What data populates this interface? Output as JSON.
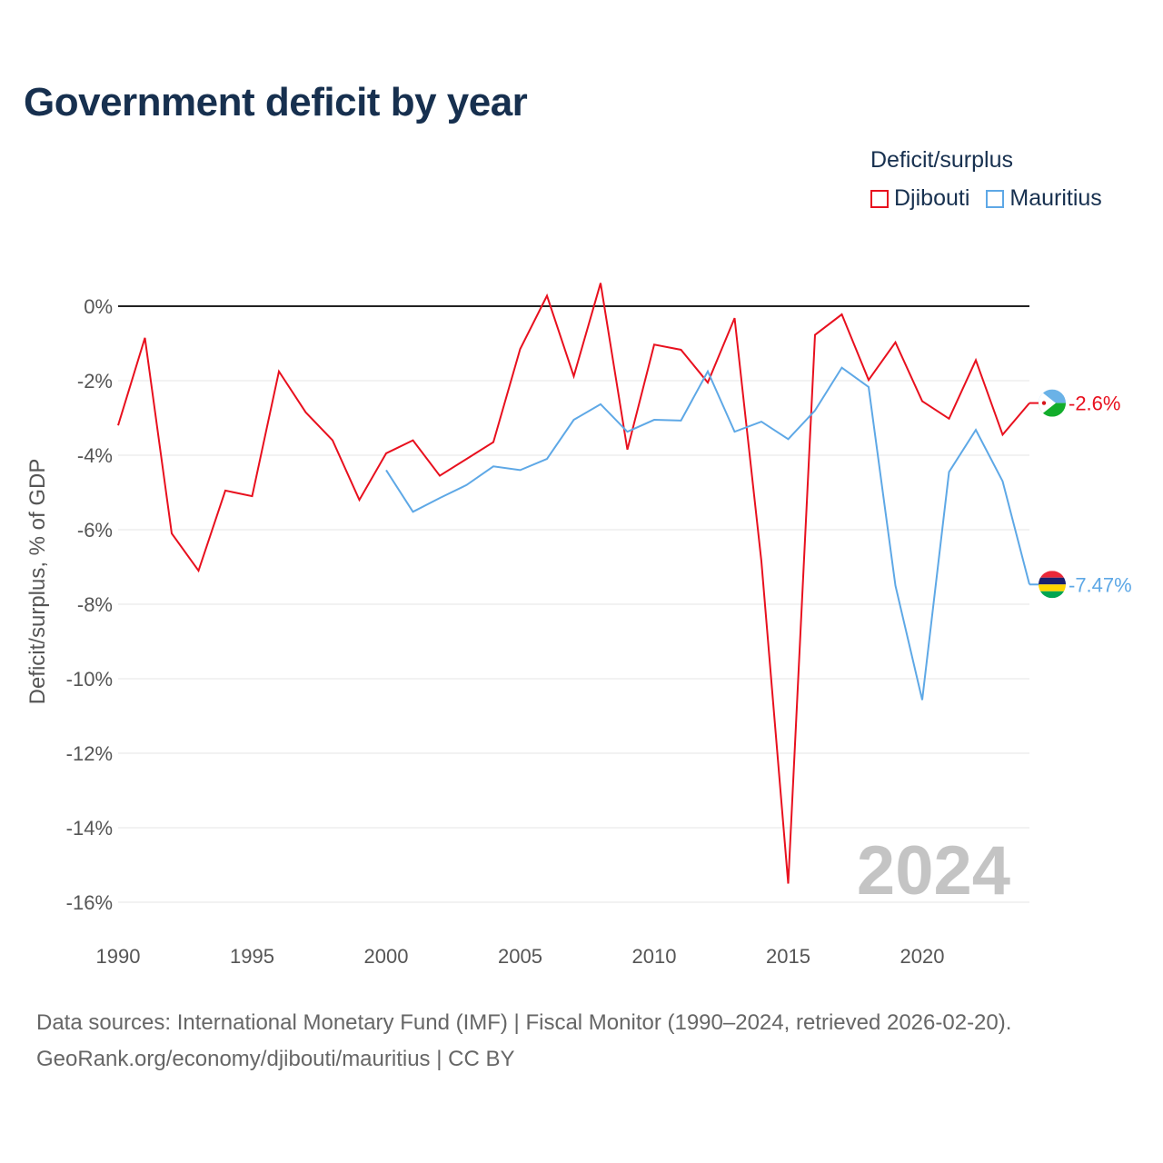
{
  "title": "Government deficit by year",
  "legend": {
    "title": "Deficit/surplus",
    "items": [
      {
        "label": "Djibouti",
        "color": "#e8101e"
      },
      {
        "label": "Mauritius",
        "color": "#5ea8e6"
      }
    ]
  },
  "footer": {
    "line1": "Data sources: International Monetary Fund (IMF) | Fiscal Monitor (1990–2024, retrieved 2026-02-20).",
    "line2": "GeoRank.org/economy/djibouti/mauritius | CC BY"
  },
  "chart_data": {
    "type": "line",
    "title": "Government deficit by year",
    "ylabel": "Deficit/surplus, % of GDP",
    "xlabel": "",
    "xlim": [
      1990,
      2024
    ],
    "ylim": [
      -16,
      0
    ],
    "yticks": [
      0,
      -2,
      -4,
      -6,
      -8,
      -10,
      -12,
      -14,
      -16
    ],
    "ytick_labels": [
      "0%",
      "-2%",
      "-4%",
      "-6%",
      "-8%",
      "-10%",
      "-12%",
      "-14%",
      "-16%"
    ],
    "xticks": [
      1990,
      1995,
      2000,
      2005,
      2010,
      2015,
      2020
    ],
    "xtick_labels": [
      "1990",
      "1995",
      "2000",
      "2005",
      "2010",
      "2015",
      "2020"
    ],
    "year_watermark": "2024",
    "series": [
      {
        "name": "Djibouti",
        "color": "#e8101e",
        "end_label": "-2.6%",
        "x": [
          1990,
          1991,
          1992,
          1993,
          1994,
          1995,
          1996,
          1997,
          1998,
          1999,
          2000,
          2001,
          2002,
          2003,
          2004,
          2005,
          2006,
          2007,
          2008,
          2009,
          2010,
          2011,
          2012,
          2013,
          2014,
          2015,
          2016,
          2017,
          2018,
          2019,
          2020,
          2021,
          2022,
          2023,
          2024
        ],
        "values": [
          -3.2,
          -0.85,
          -6.1,
          -7.1,
          -4.95,
          -5.1,
          -1.75,
          -2.85,
          -3.6,
          -5.2,
          -3.95,
          -3.6,
          -4.55,
          -4.1,
          -3.65,
          -1.15,
          0.28,
          -1.88,
          0.62,
          -3.85,
          -1.03,
          -1.17,
          -2.05,
          -0.32,
          -6.85,
          -15.5,
          -0.77,
          -0.22,
          -1.98,
          -0.97,
          -2.55,
          -3.02,
          -1.45,
          -3.45,
          -2.6
        ]
      },
      {
        "name": "Mauritius",
        "color": "#5ea8e6",
        "end_label": "-7.47%",
        "x": [
          2000,
          2001,
          2002,
          2003,
          2004,
          2005,
          2006,
          2007,
          2008,
          2009,
          2010,
          2011,
          2012,
          2013,
          2014,
          2015,
          2016,
          2017,
          2018,
          2019,
          2020,
          2021,
          2022,
          2023,
          2024
        ],
        "values": [
          -4.4,
          -5.52,
          -5.15,
          -4.8,
          -4.3,
          -4.4,
          -4.1,
          -3.05,
          -2.63,
          -3.37,
          -3.05,
          -3.07,
          -1.75,
          -3.37,
          -3.1,
          -3.57,
          -2.8,
          -1.65,
          -2.17,
          -7.5,
          -10.57,
          -4.45,
          -3.32,
          -4.7,
          -7.47
        ]
      }
    ]
  }
}
